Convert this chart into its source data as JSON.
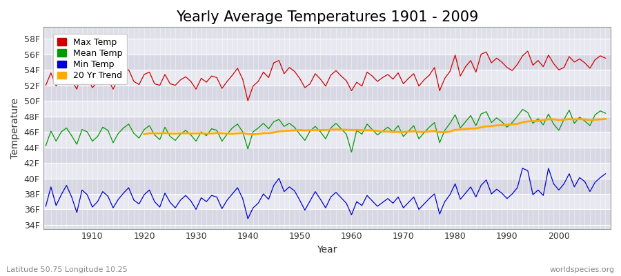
{
  "title": "Yearly Average Temperatures 1901 - 2009",
  "xlabel": "Year",
  "ylabel": "Temperature",
  "start_year": 1901,
  "end_year": 2009,
  "yticks": [
    34,
    36,
    38,
    40,
    42,
    44,
    46,
    48,
    50,
    52,
    54,
    56,
    58
  ],
  "ytick_labels": [
    "34F",
    "36F",
    "38F",
    "40F",
    "42F",
    "44F",
    "46F",
    "48F",
    "50F",
    "52F",
    "54F",
    "56F",
    "58F"
  ],
  "xticks": [
    1910,
    1920,
    1930,
    1940,
    1950,
    1960,
    1970,
    1980,
    1990,
    2000
  ],
  "ylim": [
    33.5,
    59.5
  ],
  "xlim": [
    1900.5,
    2010
  ],
  "fig_bg_color": "#ffffff",
  "plot_bg_color": "#e0e0e8",
  "band_color1": "#d8d8e4",
  "band_color2": "#e8e8f0",
  "grid_color": "#ffffff",
  "max_color": "#cc0000",
  "mean_color": "#009900",
  "min_color": "#0000cc",
  "trend_color": "#ffaa00",
  "legend_labels": [
    "Max Temp",
    "Mean Temp",
    "Min Temp",
    "20 Yr Trend"
  ],
  "footer_left": "Latitude 50.75 Longitude 10.25",
  "footer_right": "worldspecies.org",
  "title_fontsize": 15,
  "axis_label_fontsize": 10,
  "tick_fontsize": 9,
  "legend_fontsize": 9,
  "footer_fontsize": 8,
  "max_temps": [
    52.0,
    53.6,
    51.9,
    53.3,
    54.2,
    52.6,
    51.5,
    53.8,
    53.0,
    51.7,
    52.4,
    53.2,
    52.8,
    51.5,
    52.9,
    53.6,
    54.0,
    52.5,
    52.1,
    53.4,
    53.7,
    52.2,
    52.0,
    53.4,
    52.2,
    52.0,
    52.7,
    53.1,
    52.5,
    51.5,
    52.9,
    52.4,
    53.2,
    53.0,
    51.6,
    52.5,
    53.3,
    54.2,
    52.8,
    50.0,
    51.9,
    52.5,
    53.7,
    53.0,
    54.9,
    55.2,
    53.5,
    54.3,
    53.8,
    52.9,
    51.7,
    52.2,
    53.5,
    52.8,
    51.9,
    53.3,
    53.9,
    53.2,
    52.6,
    51.3,
    52.4,
    51.9,
    53.7,
    53.2,
    52.5,
    53.0,
    53.4,
    52.8,
    53.6,
    52.2,
    52.9,
    53.5,
    51.9,
    52.7,
    53.3,
    54.3,
    51.3,
    52.9,
    53.8,
    55.9,
    53.2,
    54.4,
    55.2,
    53.7,
    56.0,
    56.3,
    54.9,
    55.5,
    55.0,
    54.3,
    53.9,
    54.7,
    55.8,
    56.4,
    54.6,
    55.2,
    54.4,
    55.9,
    54.8,
    54.0,
    54.3,
    55.7,
    55.0,
    55.4,
    54.9,
    54.2,
    55.3,
    55.8,
    55.5
  ],
  "mean_temps": [
    44.2,
    46.1,
    44.8,
    46.0,
    46.5,
    45.5,
    44.4,
    46.3,
    46.0,
    44.8,
    45.4,
    46.6,
    46.2,
    44.6,
    45.8,
    46.5,
    47.0,
    45.8,
    45.2,
    46.3,
    46.8,
    45.6,
    45.0,
    46.6,
    45.4,
    44.9,
    45.7,
    46.2,
    45.6,
    44.8,
    46.0,
    45.5,
    46.4,
    46.2,
    44.8,
    45.7,
    46.5,
    47.0,
    46.0,
    43.8,
    46.0,
    46.5,
    47.1,
    46.4,
    47.3,
    47.6,
    46.7,
    47.1,
    46.6,
    45.7,
    44.9,
    46.1,
    46.7,
    46.0,
    45.1,
    46.5,
    47.1,
    46.4,
    45.7,
    43.4,
    46.2,
    45.7,
    47.0,
    46.3,
    45.6,
    46.1,
    46.6,
    46.0,
    46.8,
    45.4,
    46.1,
    46.8,
    45.1,
    45.9,
    46.6,
    47.2,
    44.6,
    46.2,
    47.1,
    48.2,
    46.5,
    47.3,
    48.1,
    46.8,
    48.3,
    48.6,
    47.2,
    47.8,
    47.3,
    46.6,
    47.2,
    48.0,
    48.9,
    48.5,
    47.1,
    47.7,
    46.9,
    48.3,
    47.0,
    46.2,
    47.6,
    48.8,
    47.1,
    47.9,
    47.4,
    46.8,
    48.2,
    48.7,
    48.4
  ],
  "min_temps": [
    36.4,
    38.9,
    36.5,
    37.9,
    39.1,
    37.6,
    35.6,
    38.5,
    37.9,
    36.3,
    37.0,
    38.3,
    37.7,
    36.2,
    37.3,
    38.1,
    38.8,
    37.2,
    36.7,
    37.9,
    38.5,
    37.0,
    36.3,
    38.1,
    36.9,
    36.2,
    37.2,
    37.8,
    37.1,
    36.0,
    37.5,
    37.0,
    37.8,
    37.6,
    36.1,
    37.2,
    38.0,
    38.8,
    37.4,
    34.8,
    36.2,
    36.8,
    38.0,
    37.3,
    39.1,
    40.0,
    38.3,
    38.9,
    38.4,
    37.2,
    35.9,
    37.1,
    38.3,
    37.3,
    36.2,
    37.6,
    38.2,
    37.5,
    36.8,
    35.3,
    37.0,
    36.5,
    37.8,
    37.1,
    36.4,
    36.9,
    37.4,
    36.8,
    37.6,
    36.2,
    36.9,
    37.6,
    36.0,
    36.7,
    37.4,
    38.0,
    35.4,
    37.0,
    37.9,
    39.3,
    37.3,
    38.1,
    38.9,
    37.6,
    39.1,
    39.8,
    38.0,
    38.6,
    38.1,
    37.4,
    38.0,
    38.8,
    41.3,
    41.0,
    37.9,
    38.5,
    37.8,
    41.3,
    39.3,
    38.5,
    39.3,
    40.6,
    38.9,
    40.1,
    39.6,
    38.3,
    39.5,
    40.1,
    40.6
  ]
}
